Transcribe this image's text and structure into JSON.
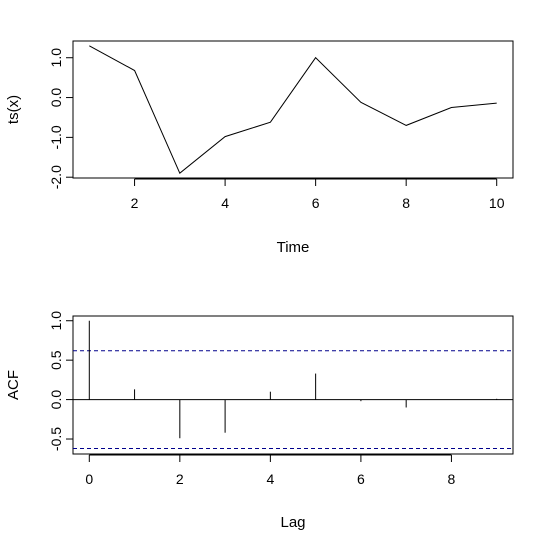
{
  "chart_data": [
    {
      "type": "line",
      "xlabel": "Time",
      "ylabel": "ts(x)",
      "x": [
        1,
        2,
        3,
        4,
        5,
        6,
        7,
        8,
        9,
        10
      ],
      "series": [
        {
          "values": [
            1.3,
            0.68,
            -1.9,
            -0.98,
            -0.62,
            1.0,
            -0.12,
            -0.7,
            -0.25,
            -0.14
          ]
        }
      ],
      "xlim": [
        0.64,
        10.36
      ],
      "ylim": [
        -2.02,
        1.42
      ],
      "xticks": [
        2,
        4,
        6,
        8,
        10
      ],
      "yticks": [
        -2.0,
        -1.0,
        0.0,
        1.0
      ],
      "xtick_labels": [
        "2",
        "4",
        "6",
        "8",
        "10"
      ],
      "ytick_labels": [
        "-2.0",
        "-1.0",
        "0.0",
        "1.0"
      ],
      "line_color": "#000000"
    },
    {
      "type": "bar",
      "xlabel": "Lag",
      "ylabel": "ACF",
      "x": [
        0,
        1,
        2,
        3,
        4,
        5,
        6,
        7,
        8,
        9
      ],
      "series": [
        {
          "values": [
            1.0,
            0.13,
            -0.49,
            -0.42,
            0.1,
            0.33,
            -0.02,
            -0.1,
            0.0,
            0.01
          ]
        }
      ],
      "confidence_bounds": [
        0.62,
        -0.62
      ],
      "confidence_color": "#00008b",
      "xlim": [
        -0.36,
        9.36
      ],
      "ylim": [
        -0.69,
        1.06
      ],
      "xticks": [
        0,
        2,
        4,
        6,
        8
      ],
      "yticks": [
        -0.5,
        0.0,
        0.5,
        1.0
      ],
      "xtick_labels": [
        "0",
        "2",
        "4",
        "6",
        "8"
      ],
      "ytick_labels": [
        "-0.5",
        "0.0",
        "0.5",
        "1.0"
      ]
    }
  ]
}
